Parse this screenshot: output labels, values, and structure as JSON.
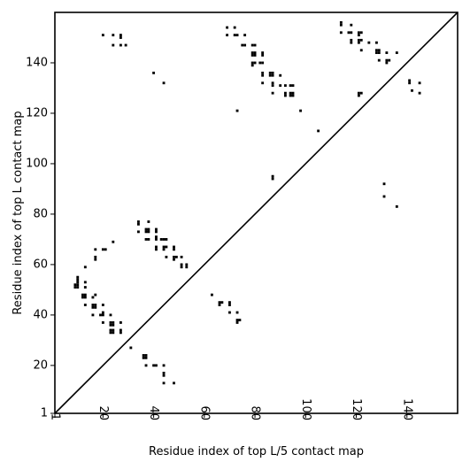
{
  "chart_data": {
    "type": "scatter",
    "title": "",
    "xlabel": "Residue index of top L/5 contact map",
    "ylabel": "Residue index of top L contact map",
    "xlim": [
      1,
      160
    ],
    "ylim": [
      1,
      160
    ],
    "xticks": [
      {
        "value": 1,
        "label": "1"
      },
      {
        "value": 20,
        "label": "20"
      },
      {
        "value": 40,
        "label": "40"
      },
      {
        "value": 60,
        "label": "60"
      },
      {
        "value": 80,
        "label": "80"
      },
      {
        "value": 100,
        "label": "100"
      },
      {
        "value": 120,
        "label": "120"
      },
      {
        "value": 140,
        "label": "140"
      }
    ],
    "yticks": [
      {
        "value": 1,
        "label": "1"
      },
      {
        "value": 20,
        "label": "20"
      },
      {
        "value": 40,
        "label": "40"
      },
      {
        "value": 60,
        "label": "60"
      },
      {
        "value": 80,
        "label": "80"
      },
      {
        "value": 100,
        "label": "100"
      },
      {
        "value": 120,
        "label": "120"
      },
      {
        "value": 140,
        "label": "140"
      }
    ],
    "grid": false,
    "legend": "none",
    "diagonal": true,
    "marker_color": "#000000",
    "upper_points": [
      [
        20,
        151
      ],
      [
        24,
        151
      ],
      [
        27,
        151
      ],
      [
        27,
        150
      ],
      [
        24,
        147
      ],
      [
        27,
        147
      ],
      [
        29,
        147
      ],
      [
        40,
        136
      ],
      [
        44,
        132
      ],
      [
        69,
        154
      ],
      [
        72,
        154
      ],
      [
        69,
        151
      ],
      [
        72,
        151
      ],
      [
        73,
        151
      ],
      [
        76,
        151
      ],
      [
        75,
        147
      ],
      [
        76,
        147
      ],
      [
        79,
        147
      ],
      [
        80,
        147
      ],
      [
        79,
        144
      ],
      [
        80,
        144
      ],
      [
        79,
        143
      ],
      [
        80,
        143
      ],
      [
        83,
        144
      ],
      [
        83,
        143
      ],
      [
        79,
        140
      ],
      [
        80,
        140
      ],
      [
        79,
        139
      ],
      [
        82,
        140
      ],
      [
        83,
        140
      ],
      [
        83,
        136
      ],
      [
        83,
        135
      ],
      [
        86,
        136
      ],
      [
        87,
        136
      ],
      [
        86,
        135
      ],
      [
        87,
        135
      ],
      [
        90,
        135
      ],
      [
        83,
        132
      ],
      [
        87,
        132
      ],
      [
        87,
        131
      ],
      [
        90,
        131
      ],
      [
        92,
        131
      ],
      [
        94,
        131
      ],
      [
        95,
        131
      ],
      [
        87,
        128
      ],
      [
        92,
        128
      ],
      [
        92,
        127
      ],
      [
        94,
        128
      ],
      [
        95,
        128
      ],
      [
        94,
        127
      ],
      [
        95,
        127
      ],
      [
        73,
        121
      ],
      [
        98,
        121
      ],
      [
        105,
        113
      ],
      [
        114,
        156
      ],
      [
        114,
        155
      ],
      [
        118,
        155
      ],
      [
        114,
        152
      ],
      [
        117,
        152
      ],
      [
        118,
        152
      ],
      [
        121,
        152
      ],
      [
        122,
        152
      ],
      [
        121,
        151
      ],
      [
        118,
        149
      ],
      [
        118,
        148
      ],
      [
        121,
        149
      ],
      [
        122,
        149
      ],
      [
        121,
        148
      ],
      [
        125,
        148
      ],
      [
        128,
        148
      ],
      [
        122,
        145
      ],
      [
        128,
        145
      ],
      [
        129,
        145
      ],
      [
        128,
        144
      ],
      [
        129,
        144
      ],
      [
        132,
        144
      ],
      [
        136,
        144
      ],
      [
        129,
        141
      ],
      [
        132,
        141
      ],
      [
        133,
        141
      ],
      [
        132,
        140
      ],
      [
        141,
        133
      ],
      [
        141,
        132
      ],
      [
        145,
        132
      ],
      [
        142,
        129
      ],
      [
        145,
        128
      ],
      [
        121,
        128
      ],
      [
        122,
        128
      ],
      [
        121,
        127
      ],
      [
        87,
        95
      ],
      [
        87,
        94
      ],
      [
        131,
        92
      ],
      [
        131,
        87
      ],
      [
        136,
        83
      ]
    ],
    "lower_points": [
      [
        34,
        77
      ],
      [
        34,
        76
      ],
      [
        38,
        77
      ],
      [
        34,
        73
      ],
      [
        37,
        74
      ],
      [
        38,
        74
      ],
      [
        37,
        73
      ],
      [
        38,
        73
      ],
      [
        41,
        74
      ],
      [
        41,
        73
      ],
      [
        41,
        71
      ],
      [
        41,
        70
      ],
      [
        37,
        70
      ],
      [
        38,
        70
      ],
      [
        43,
        70
      ],
      [
        44,
        70
      ],
      [
        45,
        70
      ],
      [
        41,
        67
      ],
      [
        41,
        66
      ],
      [
        44,
        67
      ],
      [
        45,
        67
      ],
      [
        44,
        66
      ],
      [
        48,
        67
      ],
      [
        48,
        66
      ],
      [
        45,
        63
      ],
      [
        48,
        63
      ],
      [
        49,
        63
      ],
      [
        48,
        62
      ],
      [
        51,
        63
      ],
      [
        51,
        60
      ],
      [
        53,
        60
      ],
      [
        53,
        59
      ],
      [
        51,
        59
      ],
      [
        24,
        69
      ],
      [
        20,
        66
      ],
      [
        21,
        66
      ],
      [
        17,
        66
      ],
      [
        17,
        63
      ],
      [
        17,
        62
      ],
      [
        13,
        59
      ],
      [
        10,
        55
      ],
      [
        10,
        54
      ],
      [
        10,
        53
      ],
      [
        9,
        52
      ],
      [
        10,
        52
      ],
      [
        9,
        51
      ],
      [
        10,
        51
      ],
      [
        13,
        53
      ],
      [
        13,
        51
      ],
      [
        12,
        48
      ],
      [
        13,
        48
      ],
      [
        13,
        47
      ],
      [
        12,
        47
      ],
      [
        16,
        47
      ],
      [
        17,
        48
      ],
      [
        16,
        44
      ],
      [
        17,
        44
      ],
      [
        16,
        43
      ],
      [
        17,
        43
      ],
      [
        20,
        44
      ],
      [
        13,
        44
      ],
      [
        16,
        40
      ],
      [
        20,
        41
      ],
      [
        19,
        40
      ],
      [
        20,
        40
      ],
      [
        23,
        40
      ],
      [
        20,
        37
      ],
      [
        23,
        37
      ],
      [
        24,
        37
      ],
      [
        23,
        36
      ],
      [
        24,
        36
      ],
      [
        27,
        37
      ],
      [
        23,
        34
      ],
      [
        24,
        34
      ],
      [
        23,
        33
      ],
      [
        24,
        33
      ],
      [
        27,
        34
      ],
      [
        27,
        33
      ],
      [
        31,
        27
      ],
      [
        36,
        24
      ],
      [
        37,
        24
      ],
      [
        36,
        23
      ],
      [
        37,
        23
      ],
      [
        37,
        20
      ],
      [
        40,
        20
      ],
      [
        41,
        20
      ],
      [
        44,
        20
      ],
      [
        44,
        17
      ],
      [
        44,
        16
      ],
      [
        44,
        13
      ],
      [
        48,
        13
      ],
      [
        63,
        48
      ],
      [
        66,
        45
      ],
      [
        67,
        45
      ],
      [
        66,
        44
      ],
      [
        70,
        45
      ],
      [
        70,
        44
      ],
      [
        70,
        41
      ],
      [
        73,
        41
      ],
      [
        73,
        38
      ],
      [
        74,
        38
      ],
      [
        73,
        37
      ]
    ]
  }
}
